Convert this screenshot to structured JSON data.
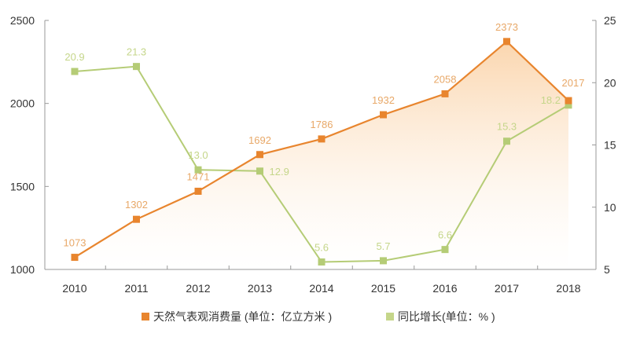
{
  "chart_data": {
    "type": "line",
    "categories": [
      "2010",
      "2011",
      "2012",
      "2013",
      "2014",
      "2015",
      "2016",
      "2017",
      "2018"
    ],
    "y_left": {
      "range": [
        1000,
        2500
      ],
      "ticks": [
        "1000",
        "1500",
        "2000",
        "2500"
      ]
    },
    "y_right": {
      "range": [
        5,
        25
      ],
      "ticks": [
        "5",
        "10",
        "15",
        "20",
        "25"
      ]
    },
    "series": [
      {
        "name": "天然气表观消费量 (单位：亿立方米 )",
        "axis": "left",
        "color": "#e8852e",
        "area_fill": true,
        "values": [
          1073,
          1302,
          1471,
          1692,
          1786,
          1932,
          2058,
          2373,
          2017
        ],
        "labels": [
          "1073",
          "1302",
          "1471",
          "1692",
          "1786",
          "1932",
          "2058",
          "2373",
          "2017"
        ]
      },
      {
        "name": "同比增长(单位：% )",
        "axis": "right",
        "color": "#b5cc76",
        "values": [
          20.9,
          21.3,
          13.0,
          12.9,
          5.6,
          5.7,
          6.6,
          15.3,
          18.2
        ],
        "labels": [
          "20.9",
          "21.3",
          "13.0",
          "12.9",
          "5.6",
          "5.7",
          "6.6",
          "15.3",
          "18.2"
        ]
      }
    ],
    "legend": "bottom",
    "grid": false
  }
}
